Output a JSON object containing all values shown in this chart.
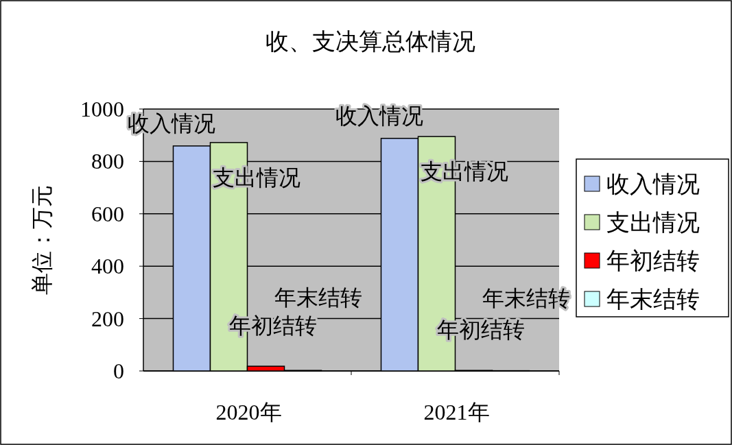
{
  "chart_data": {
    "type": "bar",
    "title": "收、支决算总体情况",
    "ylabel": "单位：万元",
    "categories": [
      "2020年",
      "2021年"
    ],
    "series": [
      {
        "name": "收入情况",
        "color": "#b0c4f0",
        "values": [
          859,
          888
        ]
      },
      {
        "name": "支出情况",
        "color": "#cce8b0",
        "values": [
          872,
          895
        ]
      },
      {
        "name": "年初结转",
        "color": "#ff0000",
        "values": [
          18,
          2
        ]
      },
      {
        "name": "年末结转",
        "color": "#ccffff",
        "values": [
          2,
          1
        ]
      }
    ],
    "ylim": [
      0,
      1000
    ],
    "yticks": [
      0,
      200,
      400,
      600,
      800,
      1000
    ],
    "grid": "y",
    "legend": "right",
    "annotations": [
      "收入情况",
      "支出情况",
      "年初结转",
      "年末结转",
      "收入情况",
      "支出情况",
      "年初结转",
      "年末结转"
    ]
  }
}
